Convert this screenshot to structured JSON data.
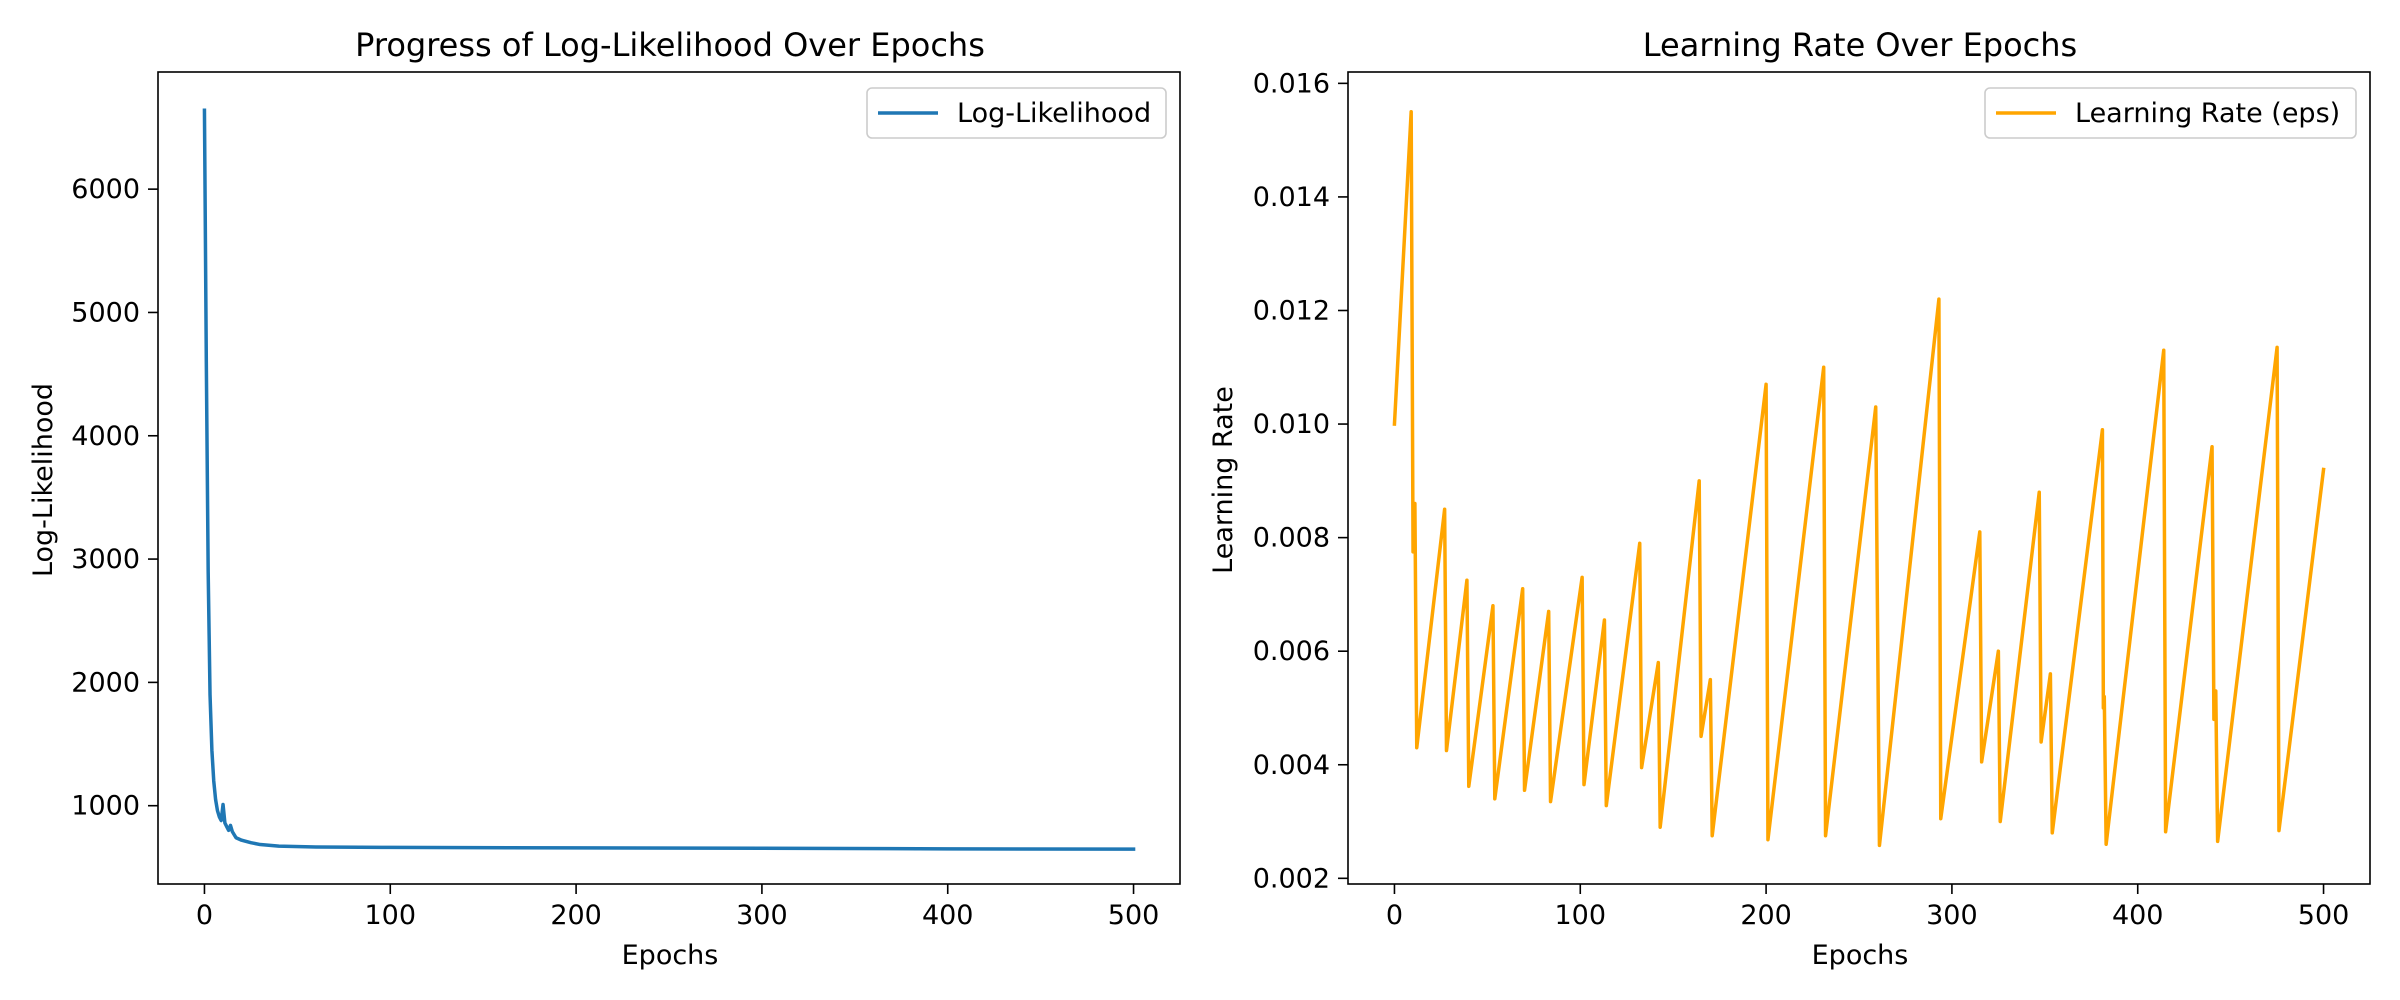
{
  "chart_data": [
    {
      "type": "line",
      "title": "Progress of Log-Likelihood Over Epochs",
      "xlabel": "Epochs",
      "ylabel": "Log-Likelihood",
      "xlim": [
        -25,
        525
      ],
      "ylim": [
        365,
        6950
      ],
      "xticks": [
        0,
        100,
        200,
        300,
        400,
        500
      ],
      "yticks": [
        1000,
        2000,
        3000,
        4000,
        5000,
        6000
      ],
      "grid": false,
      "legend_position": "top-right",
      "series": [
        {
          "name": "Log-Likelihood",
          "color": "#1f77b4",
          "points": [
            [
              0,
              6640
            ],
            [
              1,
              4600
            ],
            [
              2,
              2900
            ],
            [
              3,
              1900
            ],
            [
              4,
              1450
            ],
            [
              5,
              1200
            ],
            [
              6,
              1050
            ],
            [
              7,
              960
            ],
            [
              8,
              910
            ],
            [
              9,
              880
            ],
            [
              10,
              1010
            ],
            [
              11,
              860
            ],
            [
              12,
              830
            ],
            [
              13,
              800
            ],
            [
              14,
              840
            ],
            [
              15,
              790
            ],
            [
              17,
              740
            ],
            [
              20,
              720
            ],
            [
              25,
              700
            ],
            [
              30,
              685
            ],
            [
              40,
              672
            ],
            [
              60,
              665
            ],
            [
              100,
              662
            ],
            [
              200,
              658
            ],
            [
              300,
              655
            ],
            [
              400,
              650
            ],
            [
              500,
              648
            ]
          ]
        }
      ]
    },
    {
      "type": "line",
      "title": "Learning Rate Over Epochs",
      "xlabel": "Epochs",
      "ylabel": "Learning Rate",
      "xlim": [
        -25,
        525
      ],
      "ylim": [
        0.0019,
        0.0162
      ],
      "xticks": [
        0,
        100,
        200,
        300,
        400,
        500
      ],
      "yticks": [
        0.002,
        0.004,
        0.006,
        0.008,
        0.01,
        0.012,
        0.014,
        0.016
      ],
      "ytick_labels": [
        "0.002",
        "0.004",
        "0.006",
        "0.008",
        "0.010",
        "0.012",
        "0.014",
        "0.016"
      ],
      "grid": false,
      "legend_position": "top-right",
      "series": [
        {
          "name": "Learning Rate (eps)",
          "color": "#ffa500",
          "points": [
            [
              0,
              0.01
            ],
            [
              9,
              0.0155
            ],
            [
              10,
              0.00775
            ],
            [
              11,
              0.0086
            ],
            [
              12,
              0.0043
            ],
            [
              27,
              0.0085
            ],
            [
              28,
              0.00425
            ],
            [
              39,
              0.00725
            ],
            [
              40,
              0.00362
            ],
            [
              53,
              0.0068
            ],
            [
              54,
              0.0034
            ],
            [
              69,
              0.0071
            ],
            [
              70,
              0.00355
            ],
            [
              83,
              0.0067
            ],
            [
              84,
              0.00335
            ],
            [
              101,
              0.0073
            ],
            [
              102,
              0.00365
            ],
            [
              113,
              0.00655
            ],
            [
              114,
              0.00328
            ],
            [
              132,
              0.0079
            ],
            [
              133,
              0.00395
            ],
            [
              142,
              0.0058
            ],
            [
              143,
              0.0029
            ],
            [
              164,
              0.009
            ],
            [
              165,
              0.0045
            ],
            [
              170,
              0.0055
            ],
            [
              171,
              0.00275
            ],
            [
              200,
              0.0107
            ],
            [
              201,
              0.00268
            ],
            [
              231,
              0.011
            ],
            [
              232,
              0.00275
            ],
            [
              259,
              0.0103
            ],
            [
              261,
              0.00258
            ],
            [
              293,
              0.0122
            ],
            [
              294,
              0.00305
            ],
            [
              315,
              0.0081
            ],
            [
              316,
              0.00405
            ],
            [
              325,
              0.006
            ],
            [
              326,
              0.003
            ],
            [
              347,
              0.0088
            ],
            [
              348,
              0.0044
            ],
            [
              353,
              0.0056
            ],
            [
              354,
              0.0028
            ],
            [
              381,
              0.0099
            ],
            [
              381.5,
              0.005
            ],
            [
              382,
              0.0052
            ],
            [
              383,
              0.0026
            ],
            [
              414,
              0.0113
            ],
            [
              415,
              0.00282
            ],
            [
              440,
              0.0096
            ],
            [
              441,
              0.0048
            ],
            [
              442,
              0.0053
            ],
            [
              443,
              0.00265
            ],
            [
              475,
              0.01135
            ],
            [
              476,
              0.00284
            ],
            [
              500,
              0.0092
            ]
          ]
        }
      ]
    }
  ]
}
